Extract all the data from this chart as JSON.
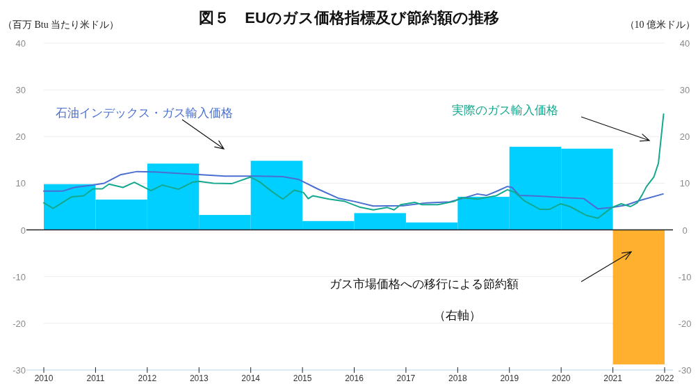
{
  "chart_data": {
    "type": "bar",
    "title": "図５　EUのガス価格指標及び節約額の推移",
    "ylabel": "（百万 Btu 当たり米ドル）",
    "y2label": "（10 億米ドル）",
    "xlim": [
      2010,
      2022
    ],
    "xticks": [
      2010,
      2011,
      2012,
      2013,
      2014,
      2015,
      2016,
      2017,
      2018,
      2019,
      2020,
      2021,
      2022
    ],
    "ylim": [
      -30,
      40
    ],
    "yticks": [
      -30,
      -20,
      -10,
      0,
      10,
      20,
      30,
      40
    ],
    "y2lim": [
      -30,
      40
    ],
    "y2ticks": [
      -30,
      -20,
      -10,
      0,
      10,
      20,
      30,
      40
    ],
    "grid": "y",
    "annotations": [
      "ガス市場価格への移行による節約額",
      "（右軸）"
    ],
    "series": [
      {
        "axis": "y2",
        "x": [
          2010.5,
          2011.5,
          2012.5,
          2013.5,
          2014.5,
          2015.5,
          2016.5,
          2017.5,
          2018.5,
          2019.5,
          2020.5,
          2021.5
        ],
        "values": [
          9.8,
          6.5,
          14.2,
          3.2,
          14.8,
          1.9,
          3.6,
          1.6,
          7.1,
          17.8,
          17.4,
          -28.8
        ],
        "colors": [
          "#00cfff",
          "#00cfff",
          "#00cfff",
          "#00cfff",
          "#00cfff",
          "#00cfff",
          "#00cfff",
          "#00cfff",
          "#00cfff",
          "#00cfff",
          "#00cfff",
          "#ffb02e"
        ]
      },
      {
        "type": "line",
        "name": "石油インデックス・ガス輸入価格",
        "color": "#4a6fd0",
        "x": [
          2010.0,
          2010.36,
          2010.59,
          2010.95,
          2011.17,
          2011.48,
          2011.8,
          2012.15,
          2012.6,
          2013.05,
          2013.5,
          2014.17,
          2014.62,
          2014.93,
          2015.29,
          2015.69,
          2016.0,
          2016.37,
          2016.95,
          2017.4,
          2017.85,
          2018.11,
          2018.38,
          2018.56,
          2018.74,
          2018.96,
          2019.05,
          2019.19,
          2019.64,
          2020.08,
          2020.44,
          2020.71,
          2020.98,
          2021.25,
          2021.52,
          2021.97
        ],
        "values": [
          8.3,
          8.3,
          9.1,
          9.6,
          10.0,
          11.8,
          12.5,
          12.4,
          12.1,
          11.8,
          11.5,
          11.5,
          11.4,
          10.8,
          8.8,
          6.8,
          6.1,
          5.1,
          5.2,
          5.8,
          6.0,
          6.8,
          7.7,
          7.4,
          8.2,
          9.3,
          9.1,
          7.4,
          7.2,
          6.9,
          6.7,
          4.5,
          4.8,
          5.3,
          6.3,
          7.7
        ]
      },
      {
        "type": "line",
        "name": "実際のガス輸入価格",
        "color": "#14a88e",
        "x": [
          2010.0,
          2010.18,
          2010.54,
          2010.77,
          2010.95,
          2011.13,
          2011.26,
          2011.53,
          2011.75,
          2012.07,
          2012.29,
          2012.6,
          2012.87,
          2013.0,
          2013.28,
          2013.63,
          2013.99,
          2014.17,
          2014.4,
          2014.62,
          2014.84,
          2015.02,
          2015.11,
          2015.2,
          2015.51,
          2015.82,
          2016.1,
          2016.37,
          2016.64,
          2016.77,
          2016.9,
          2017.17,
          2017.31,
          2017.62,
          2017.93,
          2018.07,
          2018.38,
          2018.74,
          2018.96,
          2019.1,
          2019.28,
          2019.59,
          2019.77,
          2019.99,
          2020.17,
          2020.49,
          2020.71,
          2020.98,
          2021.16,
          2021.34,
          2021.47,
          2021.56,
          2021.65,
          2021.79,
          2021.88,
          2021.98
        ],
        "values": [
          5.8,
          4.6,
          7.1,
          7.3,
          8.8,
          8.8,
          9.8,
          9.1,
          10.2,
          8.4,
          9.6,
          8.7,
          10.2,
          10.4,
          10.0,
          9.9,
          11.3,
          10.3,
          8.3,
          6.6,
          8.5,
          8.0,
          6.7,
          7.3,
          6.6,
          6.1,
          4.9,
          4.3,
          4.8,
          4.3,
          5.4,
          5.9,
          5.4,
          5.4,
          6.1,
          6.9,
          6.6,
          7.3,
          8.6,
          8.1,
          6.3,
          4.4,
          4.4,
          5.6,
          5.0,
          3.1,
          2.5,
          4.8,
          5.6,
          5.0,
          5.8,
          7.4,
          9.3,
          11.3,
          14.3,
          24.8
        ]
      }
    ]
  }
}
